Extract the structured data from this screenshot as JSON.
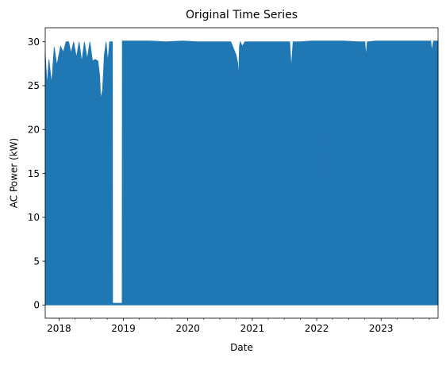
{
  "chart_data": {
    "type": "area",
    "title": "Original Time Series",
    "xlabel": "Date",
    "ylabel": "AC Power (kW)",
    "xlim": [
      "2017-10-15",
      "2023-11-20"
    ],
    "ylim": [
      -1.5,
      31.6
    ],
    "grid": false,
    "legend": "none",
    "color": "#1f77b4",
    "x_ticks": [
      "2018",
      "2019",
      "2020",
      "2021",
      "2022",
      "2023"
    ],
    "x_tick_dates": [
      "2018-01-01",
      "2019-01-01",
      "2020-01-01",
      "2021-01-01",
      "2022-01-01",
      "2023-01-01"
    ],
    "y_ticks": [
      0,
      5,
      10,
      15,
      20,
      25,
      30
    ],
    "series": [
      {
        "x": [
          "2017-10-15",
          "2017-10-25",
          "2017-11-05",
          "2017-11-20",
          "2017-12-05",
          "2017-12-20",
          "2018-01-10",
          "2018-01-25",
          "2018-02-10",
          "2018-02-25",
          "2018-03-10",
          "2018-03-25",
          "2018-04-10",
          "2018-04-25",
          "2018-05-10",
          "2018-05-25",
          "2018-06-10",
          "2018-06-25",
          "2018-07-10",
          "2018-07-25",
          "2018-08-10",
          "2018-08-20",
          "2018-08-25",
          "2018-09-05",
          "2018-09-15",
          "2018-09-25",
          "2018-10-05",
          "2018-10-15",
          "2018-10-25",
          "2018-10-31",
          "2018-11-01",
          "2018-12-25",
          "2018-12-26",
          "2019-01-01",
          "2019-03-01",
          "2019-06-01",
          "2019-09-01",
          "2019-12-01",
          "2020-03-01",
          "2020-06-01",
          "2020-09-01",
          "2020-10-01",
          "2020-10-10",
          "2020-10-15",
          "2020-10-20",
          "2020-10-25",
          "2020-11-05",
          "2020-11-20",
          "2020-12-15",
          "2021-01-01",
          "2021-03-01",
          "2021-06-01",
          "2021-08-01",
          "2021-08-10",
          "2021-08-20",
          "2021-09-01",
          "2021-10-01",
          "2021-12-01",
          "2022-02-24",
          "2022-02-25",
          "2022-02-27",
          "2022-03-01",
          "2022-06-01",
          "2022-09-01",
          "2022-10-01",
          "2022-10-07",
          "2022-10-15",
          "2022-12-01",
          "2023-03-01",
          "2023-06-01",
          "2023-09-01",
          "2023-10-10",
          "2023-10-15",
          "2023-10-25",
          "2023-11-20"
        ],
        "y": [
          28.8,
          25.0,
          28.0,
          25.2,
          29.4,
          27.3,
          29.5,
          28.8,
          30.0,
          30.0,
          28.7,
          30.0,
          28.2,
          30.0,
          27.7,
          30.0,
          28.0,
          30.0,
          27.8,
          28.0,
          27.8,
          26.0,
          23.5,
          24.5,
          28.5,
          30.0,
          27.7,
          30.0,
          30.0,
          30.0,
          0.2,
          0.2,
          30.1,
          30.1,
          30.1,
          30.1,
          30.0,
          30.1,
          30.0,
          30.0,
          30.0,
          28.5,
          27.6,
          25.8,
          29.5,
          30.0,
          29.5,
          30.0,
          30.0,
          30.0,
          30.0,
          30.0,
          30.0,
          27.0,
          30.0,
          30.0,
          30.0,
          30.1,
          30.1,
          0.0,
          30.1,
          30.1,
          30.1,
          30.0,
          30.0,
          28.4,
          30.0,
          30.1,
          30.1,
          30.1,
          30.1,
          30.1,
          28.9,
          30.1,
          30.1
        ]
      }
    ]
  }
}
